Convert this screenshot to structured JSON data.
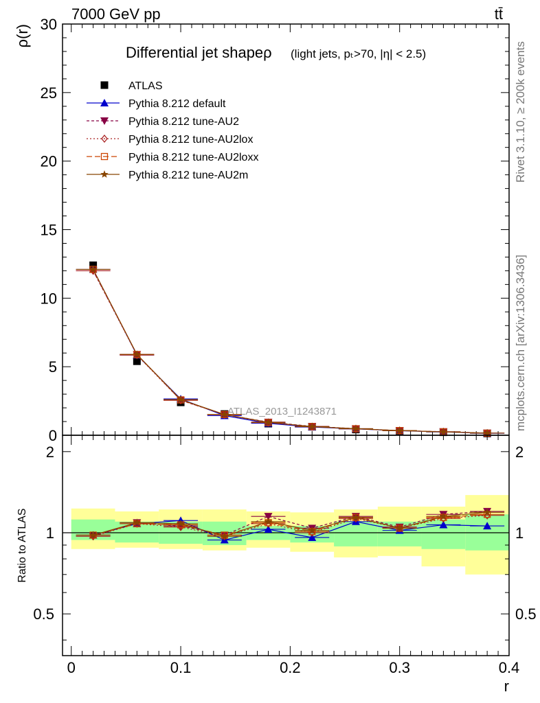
{
  "header": {
    "left": "7000 GeV pp",
    "right": "tt̄"
  },
  "side_labels": {
    "rivet": "Rivet 3.1.10, ≥ 200k events",
    "mcplots": "mcplots.cern.ch [arXiv:1306.3436]"
  },
  "chart_data": [
    {
      "type": "line",
      "panel": "main",
      "title": "Differential jet shapeρ",
      "subtitle": "(light jets, pₜ>70, |η| < 2.5)",
      "ylabel": "ρ(r)",
      "watermark": "ATLAS_2013_I1243871",
      "xlim": [
        -0.008,
        0.4
      ],
      "ylim": [
        0,
        30
      ],
      "yticks": [
        0,
        5,
        10,
        15,
        20,
        25,
        30
      ],
      "legend_position": "top-left",
      "x": [
        0.02,
        0.06,
        0.1,
        0.14,
        0.18,
        0.22,
        0.26,
        0.3,
        0.34,
        0.38
      ],
      "series": [
        {
          "name": "ATLAS",
          "color": "#000000",
          "marker": "square",
          "values": [
            12.4,
            5.4,
            2.4,
            1.55,
            0.85,
            0.62,
            0.42,
            0.32,
            0.22,
            0.13
          ]
        },
        {
          "name": "Pythia 8.212 default",
          "color": "#0000cc",
          "marker": "triangle-up",
          "dash": "",
          "values": [
            12.1,
            5.85,
            2.65,
            1.43,
            0.87,
            0.6,
            0.46,
            0.33,
            0.24,
            0.14
          ]
        },
        {
          "name": "Pythia 8.212 tune-AU2",
          "color": "#880044",
          "marker": "triangle-down",
          "dash": "4,3",
          "values": [
            12.0,
            5.9,
            2.55,
            1.52,
            0.96,
            0.65,
            0.48,
            0.34,
            0.26,
            0.16
          ]
        },
        {
          "name": "Pythia 8.212 tune-AU2lox",
          "color": "#aa2222",
          "marker": "diamond-open",
          "dash": "2,3",
          "values": [
            12.0,
            5.85,
            2.55,
            1.5,
            0.92,
            0.62,
            0.47,
            0.34,
            0.25,
            0.15
          ]
        },
        {
          "name": "Pythia 8.212 tune-AU2loxx",
          "color": "#cc4400",
          "marker": "square-open",
          "dash": "8,4",
          "values": [
            12.1,
            5.88,
            2.58,
            1.51,
            0.93,
            0.63,
            0.47,
            0.34,
            0.25,
            0.15
          ]
        },
        {
          "name": "Pythia 8.212 tune-AU2m",
          "color": "#884400",
          "marker": "star",
          "dash": "",
          "values": [
            12.1,
            5.9,
            2.6,
            1.52,
            0.94,
            0.63,
            0.48,
            0.34,
            0.25,
            0.16
          ]
        }
      ]
    },
    {
      "type": "line",
      "panel": "ratio",
      "ylabel": "Ratio to ATLAS",
      "xlabel": "r",
      "xlim": [
        -0.008,
        0.4
      ],
      "ylim": [
        0.35,
        2.3
      ],
      "yticks": [
        0.5,
        1,
        2
      ],
      "xticks": [
        0,
        0.1,
        0.2,
        0.3,
        0.4
      ],
      "x": [
        0.02,
        0.06,
        0.1,
        0.14,
        0.18,
        0.22,
        0.26,
        0.3,
        0.34,
        0.38
      ],
      "bins": [
        [
          0.0,
          0.04
        ],
        [
          0.04,
          0.08
        ],
        [
          0.08,
          0.12
        ],
        [
          0.12,
          0.16
        ],
        [
          0.16,
          0.2
        ],
        [
          0.2,
          0.24
        ],
        [
          0.24,
          0.28
        ],
        [
          0.28,
          0.32
        ],
        [
          0.32,
          0.36
        ],
        [
          0.36,
          0.4
        ]
      ],
      "band_inner": [
        [
          0.94,
          1.12
        ],
        [
          0.92,
          1.1
        ],
        [
          0.91,
          1.1
        ],
        [
          0.9,
          1.1
        ],
        [
          0.94,
          1.06
        ],
        [
          0.92,
          1.06
        ],
        [
          0.89,
          1.1
        ],
        [
          0.89,
          1.1
        ],
        [
          0.87,
          1.12
        ],
        [
          0.86,
          1.17
        ]
      ],
      "band_outer": [
        [
          0.87,
          1.23
        ],
        [
          0.88,
          1.2
        ],
        [
          0.87,
          1.22
        ],
        [
          0.86,
          1.22
        ],
        [
          0.88,
          1.2
        ],
        [
          0.85,
          1.19
        ],
        [
          0.81,
          1.22
        ],
        [
          0.82,
          1.25
        ],
        [
          0.75,
          1.25
        ],
        [
          0.7,
          1.38
        ]
      ],
      "band_colors": {
        "inner": "#99ff99",
        "outer": "#ffff99"
      },
      "series": [
        {
          "name": "Pythia 8.212 default",
          "color": "#0000cc",
          "marker": "triangle-up",
          "dash": "",
          "values": [
            0.98,
            1.08,
            1.11,
            0.94,
            1.03,
            0.96,
            1.1,
            1.02,
            1.07,
            1.06
          ]
        },
        {
          "name": "Pythia 8.212 tune-AU2",
          "color": "#880044",
          "marker": "triangle-down",
          "dash": "4,3",
          "values": [
            0.97,
            1.09,
            1.06,
            0.98,
            1.15,
            1.04,
            1.15,
            1.05,
            1.17,
            1.2
          ]
        },
        {
          "name": "Pythia 8.212 tune-AU2lox",
          "color": "#aa2222",
          "marker": "diamond-open",
          "dash": "2,3",
          "values": [
            0.97,
            1.08,
            1.05,
            0.97,
            1.08,
            1.0,
            1.13,
            1.04,
            1.13,
            1.16
          ]
        },
        {
          "name": "Pythia 8.212 tune-AU2loxx",
          "color": "#cc4400",
          "marker": "square-open",
          "dash": "8,4",
          "values": [
            0.98,
            1.08,
            1.07,
            0.98,
            1.09,
            1.01,
            1.14,
            1.04,
            1.14,
            1.17
          ]
        },
        {
          "name": "Pythia 8.212 tune-AU2m",
          "color": "#884400",
          "marker": "star",
          "dash": "",
          "values": [
            0.98,
            1.09,
            1.08,
            0.97,
            1.1,
            1.02,
            1.14,
            1.04,
            1.15,
            1.19
          ]
        }
      ]
    }
  ]
}
